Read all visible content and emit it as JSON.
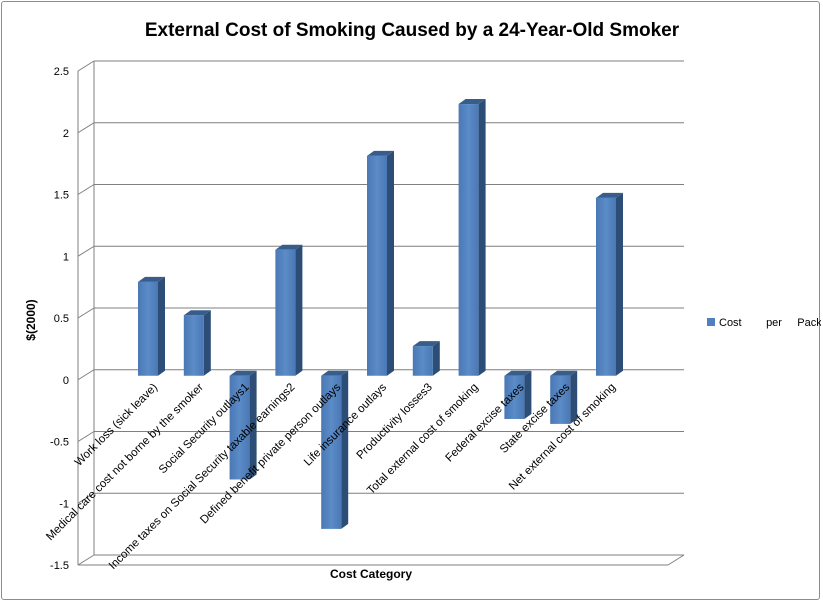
{
  "chart_data": {
    "type": "bar",
    "title": "External Cost of Smoking Caused by a 24-Year-Old Smoker",
    "xlabel": "Cost Category",
    "ylabel": "$(2000)",
    "ylim": [
      -1.5,
      2.5
    ],
    "yticks": [
      "2.5",
      "2",
      "1.5",
      "1",
      "0.5",
      "0",
      "-0.5",
      "-1",
      "-1.5"
    ],
    "grid": true,
    "legend_position": "right",
    "bar_color": "#4f81bd",
    "categories": [
      "Work loss (sick leave)",
      "Medical care cost not borne by the smoker",
      "Social Security outlays1",
      "Income taxes on Social Security taxable earnings2",
      "Defined benefit private person outlays",
      "Life insurance outlays",
      "Productivity losses3",
      "Total external cost of smoking",
      "Federal excise taxes",
      "State excise taxes",
      "Net external cost of smoking"
    ],
    "series": [
      {
        "name": "Cost        per     Pack",
        "values": [
          0.76,
          0.49,
          -0.84,
          1.02,
          -1.24,
          1.78,
          0.24,
          2.2,
          -0.35,
          -0.39,
          1.44
        ]
      }
    ]
  }
}
